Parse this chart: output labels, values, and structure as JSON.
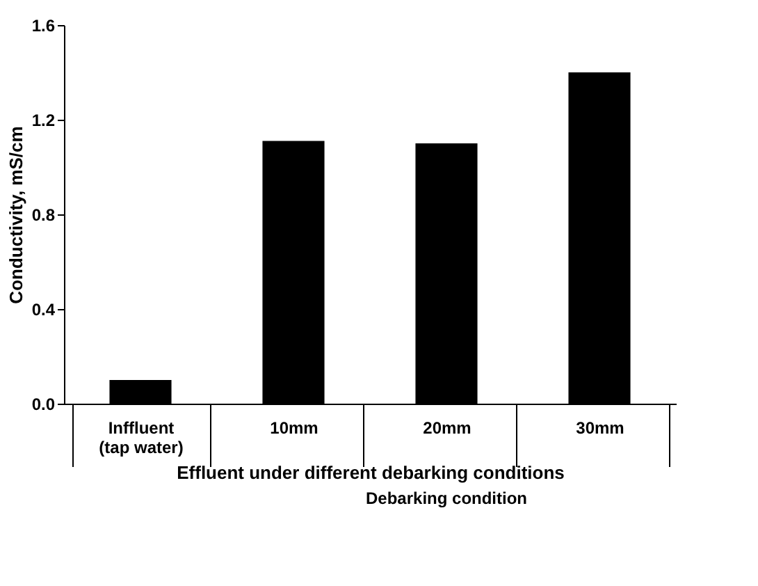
{
  "chart_data": {
    "type": "bar",
    "xlabel": "Effluent under different debarking conditions",
    "ylabel": "Conductivity, mS/cm",
    "categories": [
      "Inffluent (tap water)",
      "10mm",
      "20mm",
      "30mm"
    ],
    "values": [
      0.1,
      1.11,
      1.1,
      1.4
    ],
    "color": "#000000",
    "ylim": [
      0,
      1.6
    ],
    "yticks": [
      {
        "value": 0,
        "label": "0.0"
      },
      {
        "value": 0.4,
        "label": "0.4"
      },
      {
        "value": 0.8,
        "label": "0.8"
      },
      {
        "value": 1.2,
        "label": "1.2"
      },
      {
        "value": 1.6,
        "label": "1.6"
      }
    ],
    "annotations": [
      "Debarking condition"
    ],
    "grid": false
  }
}
